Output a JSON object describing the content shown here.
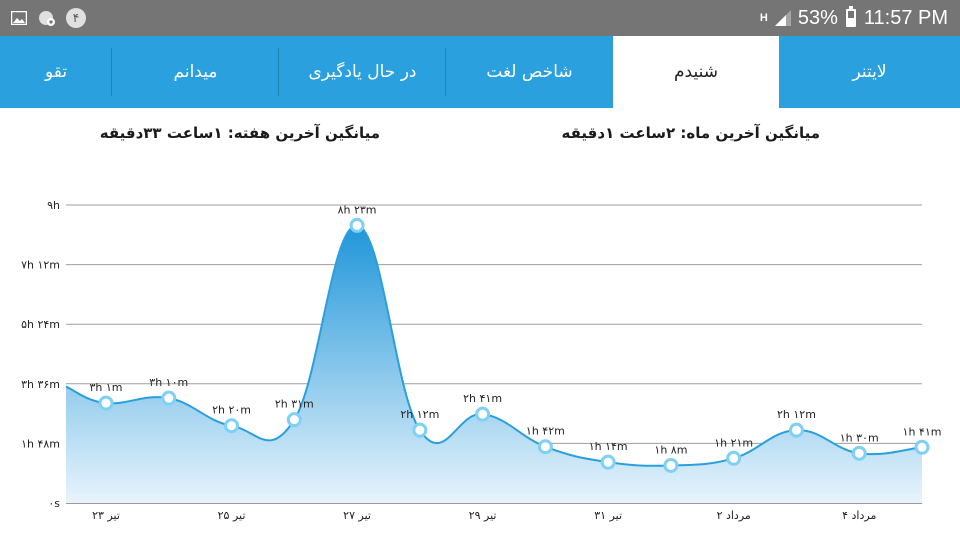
{
  "status_bar": {
    "left_icons": [
      "image-icon",
      "notification-settings-icon"
    ],
    "badge": "۴",
    "network_label": "H",
    "battery": "53%",
    "time": "11:57 PM"
  },
  "tabs": [
    {
      "label": "تقو"
    },
    {
      "label": "میدانم"
    },
    {
      "label": "در حال یادگیری"
    },
    {
      "label": "شاخص لغت"
    },
    {
      "label": "شنیدم",
      "active": true
    },
    {
      "label": "لایتنر"
    }
  ],
  "averages": {
    "week": "میانگین آخرین هفته: ۱ساعت  ۳۳دقیقه",
    "month": "میانگین آخرین ماه: ۲ساعت  ۱دقیقه"
  },
  "colors": {
    "tab_bar": "#2aa0de",
    "line": "#2a9fdd",
    "fill_top": "#1f96d9",
    "fill_bottom": "#e8f4fc",
    "status_bar": "#757575"
  },
  "chart_data": {
    "type": "area",
    "y_unit": "minutes",
    "ylim": [
      0,
      540
    ],
    "grid": true,
    "y_ticks": [
      {
        "value": 0,
        "label": "۰s"
      },
      {
        "value": 108,
        "label": "۱h ۴۸m"
      },
      {
        "value": 216,
        "label": "۳h ۳۶m"
      },
      {
        "value": 324,
        "label": "۵h ۲۴m"
      },
      {
        "value": 432,
        "label": "۷h ۱۲m"
      },
      {
        "value": 540,
        "label": "۹h"
      }
    ],
    "x_tick_labels": [
      "۲۳ تیر",
      "۲۵ تیر",
      "۲۷ تیر",
      "۲۹ تیر",
      "۳۱ تیر",
      "۲ مرداد",
      "۴ مرداد"
    ],
    "points": [
      {
        "date": "۲۳ تیر",
        "minutes": 181,
        "label": "۳h ۱m"
      },
      {
        "date": "۲۴ تیر",
        "minutes": 190,
        "label": "۳h ۱۰m"
      },
      {
        "date": "۲۵ تیر",
        "minutes": 140,
        "label": "۲h ۲۰m"
      },
      {
        "date": "۲۶ تیر",
        "minutes": 151,
        "label": "۲h ۳۱m"
      },
      {
        "date": "۲۷ تیر",
        "minutes": 503,
        "label": "۸h ۲۳m"
      },
      {
        "date": "۲۸ تیر",
        "minutes": 132,
        "label": "۲h ۱۲m"
      },
      {
        "date": "۲۹ تیر",
        "minutes": 161,
        "label": "۲h ۴۱m"
      },
      {
        "date": "۳۰ تیر",
        "minutes": 102,
        "label": "۱h ۴۲m"
      },
      {
        "date": "۳۱ تیر",
        "minutes": 74,
        "label": "۱h ۱۴m"
      },
      {
        "date": "۱ مرداد",
        "minutes": 68,
        "label": "۱h ۸m"
      },
      {
        "date": "۲ مرداد",
        "minutes": 81,
        "label": "۱h ۲۱m"
      },
      {
        "date": "۳ مرداد",
        "minutes": 132,
        "label": "۲h ۱۲m"
      },
      {
        "date": "۴ مرداد",
        "minutes": 90,
        "label": "۱h ۳۰m"
      },
      {
        "date": "۵ مرداد",
        "minutes": 101,
        "label": "۱h ۴۱m"
      }
    ]
  }
}
